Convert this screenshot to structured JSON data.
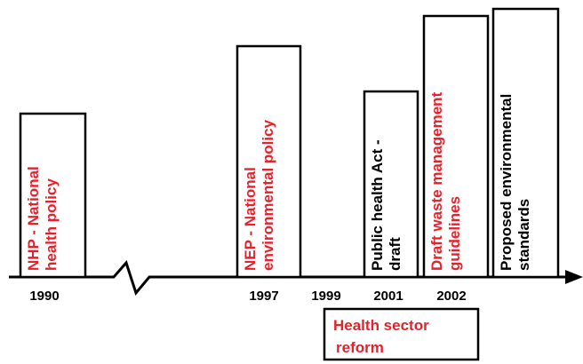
{
  "events": [
    {
      "lines": [
        "NHP - National",
        "health policy"
      ],
      "color": "red"
    },
    {
      "lines": [
        "NEP - National",
        "environmental policy"
      ],
      "color": "red"
    },
    {
      "lines": [
        "Public health Act -",
        "draft"
      ],
      "color": "black"
    },
    {
      "lines": [
        "Draft waste management",
        "guidelines"
      ],
      "color": "red"
    },
    {
      "lines": [
        "Proposed environmental",
        "standards"
      ],
      "color": "black"
    }
  ],
  "years": [
    "1990",
    "1997",
    "1999",
    "2001",
    "2002"
  ],
  "reform": {
    "lines": [
      "Health sector",
      "reform"
    ]
  }
}
